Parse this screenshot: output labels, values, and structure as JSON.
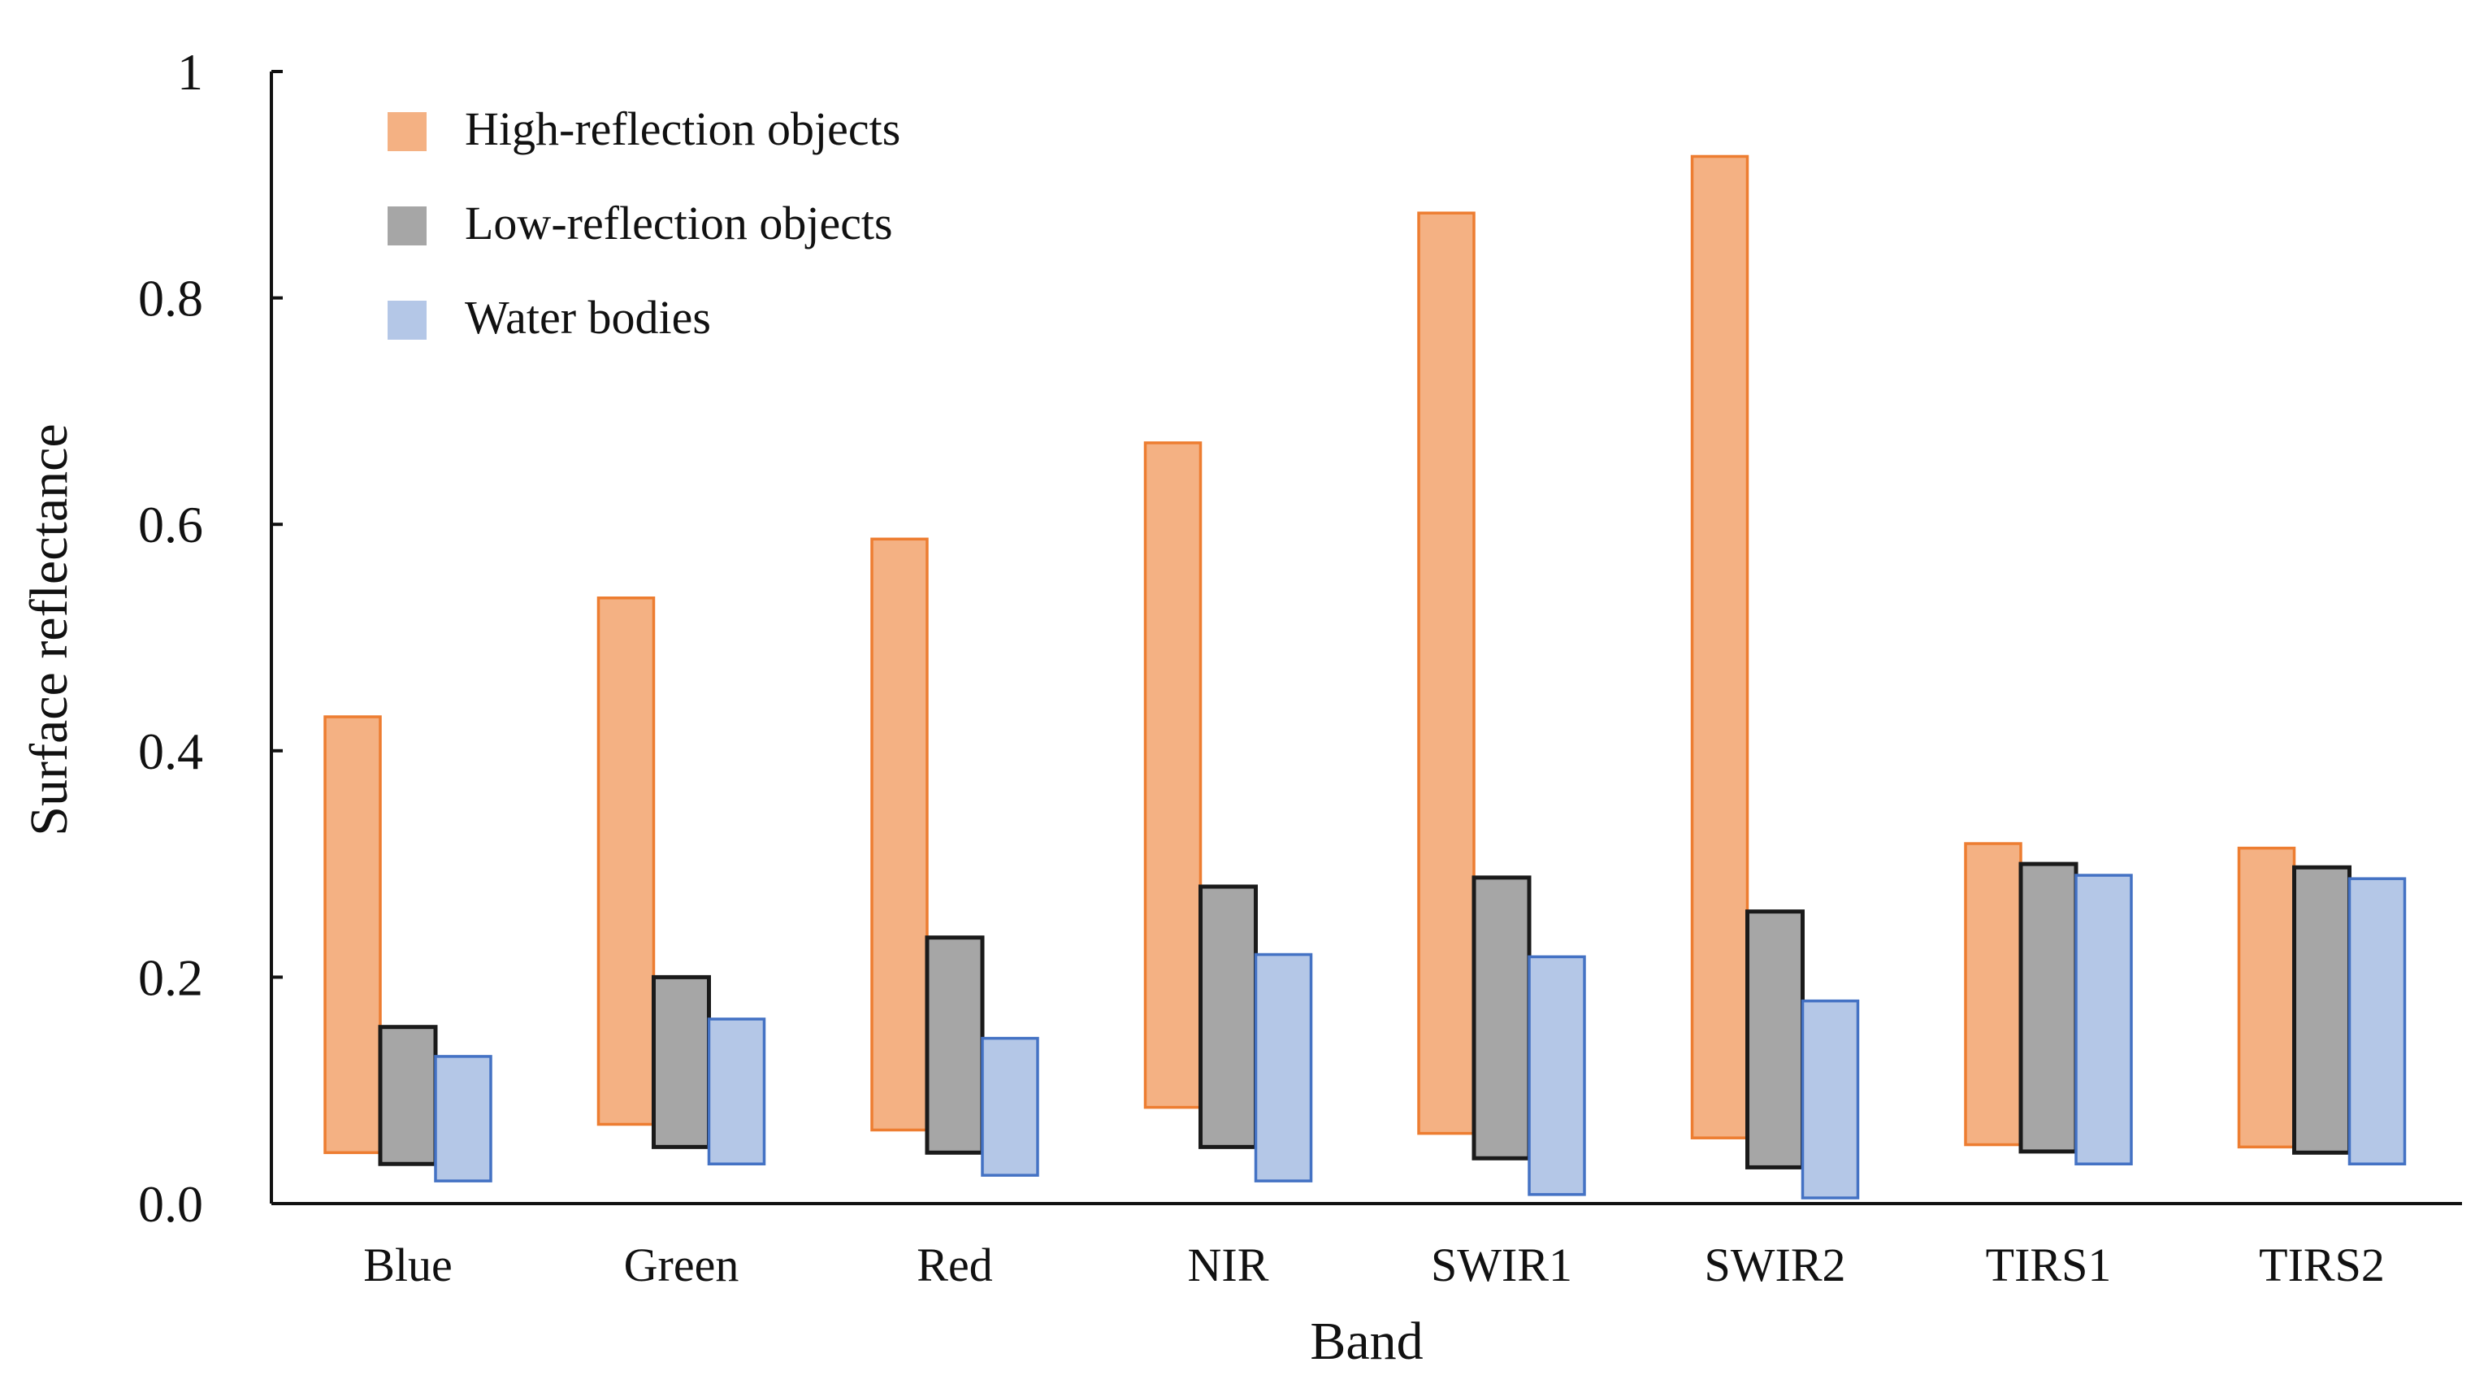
{
  "chart_data": {
    "type": "bar",
    "subtype": "floating-range",
    "title": "",
    "xlabel": "Band",
    "ylabel": "Surface reflectance",
    "ylim": [
      0,
      1
    ],
    "yticks": [
      {
        "value": 0,
        "label": "0.0"
      },
      {
        "value": 0.2,
        "label": "0.2"
      },
      {
        "value": 0.4,
        "label": "0.4"
      },
      {
        "value": 0.6,
        "label": "0.6"
      },
      {
        "value": 0.8,
        "label": "0.8"
      },
      {
        "value": 1,
        "label": "1"
      }
    ],
    "legend_position": "top-left",
    "grid": false,
    "categories": [
      "Blue",
      "Green",
      "Red",
      "NIR",
      "SWIR1",
      "SWIR2",
      "TIRS1",
      "TIRS2"
    ],
    "series": [
      {
        "name": "High-reflection objects",
        "fill": "#F4B183",
        "stroke": "#ED7D31",
        "ranges": [
          [
            0.045,
            0.43
          ],
          [
            0.07,
            0.535
          ],
          [
            0.065,
            0.587
          ],
          [
            0.085,
            0.672
          ],
          [
            0.062,
            0.875
          ],
          [
            0.058,
            0.925
          ],
          [
            0.052,
            0.318
          ],
          [
            0.05,
            0.314
          ]
        ]
      },
      {
        "name": "Low-reflection objects",
        "fill": "#A6A6A6",
        "stroke": "#1A1A1A",
        "ranges": [
          [
            0.035,
            0.156
          ],
          [
            0.05,
            0.2
          ],
          [
            0.045,
            0.235
          ],
          [
            0.05,
            0.28
          ],
          [
            0.04,
            0.288
          ],
          [
            0.032,
            0.258
          ],
          [
            0.046,
            0.3
          ],
          [
            0.045,
            0.297
          ]
        ]
      },
      {
        "name": "Water bodies",
        "fill": "#B4C7E7",
        "stroke": "#4472C4",
        "ranges": [
          [
            0.02,
            0.13
          ],
          [
            0.035,
            0.163
          ],
          [
            0.025,
            0.146
          ],
          [
            0.02,
            0.22
          ],
          [
            0.008,
            0.218
          ],
          [
            0.005,
            0.179
          ],
          [
            0.035,
            0.29
          ],
          [
            0.035,
            0.287
          ]
        ]
      }
    ]
  }
}
